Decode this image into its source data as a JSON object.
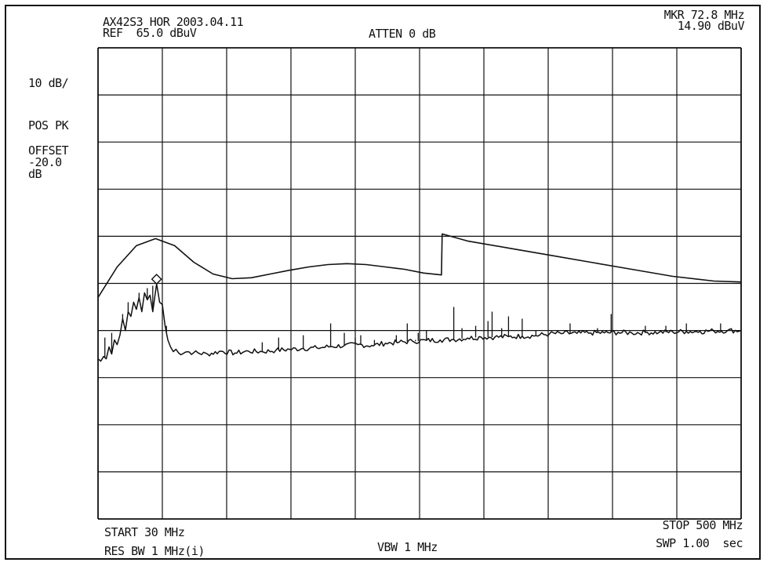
{
  "header": {
    "title": "AX42S3 HOR 2003.04.11",
    "ref_level": "REF  65.0 dBuV",
    "attenuation": "ATTEN 0 dB",
    "marker_freq": "MKR 72.8 MHz",
    "marker_level": "14.90 dBuV"
  },
  "side_panel": {
    "scale": "10 dB/",
    "detector": "POS PK",
    "offset_label": "OFFSET",
    "offset_value": "-20.0",
    "offset_unit": "dB"
  },
  "footer": {
    "start": "START 30 MHz",
    "res_bw": "RES BW 1 MHz(i)",
    "vbw": "VBW 1 MHz",
    "stop": "STOP 500 MHz",
    "sweep": "SWP 1.00  sec"
  },
  "colors": {
    "trace": "#111111",
    "grid": "#111111",
    "background": "#ffffff"
  },
  "chart_data": {
    "type": "line",
    "xlim": [
      30,
      500
    ],
    "ylim": [
      -35,
      65
    ],
    "grid": true,
    "grid_divisions": {
      "x": 10,
      "y": 10
    },
    "marker": {
      "x": 72.8,
      "y": 14.9,
      "shape": "diamond"
    },
    "series": [
      {
        "role": "limit",
        "x": [
          30,
          44,
          58,
          72,
          86,
          100,
          114,
          128,
          142,
          156,
          170,
          184,
          198,
          212,
          226,
          240,
          254,
          268,
          281,
          281.5,
          300,
          330,
          360,
          390,
          420,
          450,
          480,
          500
        ],
        "y": [
          12.0,
          18.5,
          23.0,
          24.5,
          23.0,
          19.5,
          17.0,
          16.0,
          16.2,
          17.0,
          17.8,
          18.5,
          19.0,
          19.2,
          19.0,
          18.5,
          18.0,
          17.2,
          16.8,
          25.5,
          24.0,
          22.5,
          21.0,
          19.5,
          18.0,
          16.5,
          15.5,
          15.3
        ]
      },
      {
        "role": "measured",
        "x": [
          30,
          32,
          34,
          36,
          38,
          40,
          42,
          44,
          46,
          48,
          50,
          52,
          54,
          56,
          58,
          60,
          62,
          64,
          66,
          68,
          70,
          72.8,
          75,
          77,
          79,
          81,
          83,
          85,
          87,
          89,
          95,
          100,
          110,
          120,
          130,
          140,
          150,
          160,
          170,
          180,
          190,
          200,
          210,
          220,
          230,
          240,
          250,
          260,
          270,
          280,
          290,
          300,
          310,
          320,
          330,
          340,
          350,
          360,
          370,
          380,
          390,
          400,
          410,
          420,
          430,
          440,
          450,
          460,
          470,
          480,
          490,
          500
        ],
        "y": [
          -1.0,
          -1.5,
          -0.5,
          -1.0,
          1.5,
          0.0,
          3.0,
          2.0,
          4.0,
          7.5,
          5.0,
          9.0,
          8.0,
          11.0,
          9.5,
          12.0,
          9.0,
          13.0,
          11.5,
          12.5,
          9.0,
          14.9,
          11.0,
          10.5,
          6.0,
          3.0,
          1.5,
          0.5,
          1.0,
          0.2,
          0.5,
          0.3,
          0.0,
          0.6,
          0.2,
          0.6,
          0.5,
          0.8,
          1.0,
          1.2,
          1.3,
          1.6,
          1.8,
          2.0,
          1.8,
          2.3,
          2.5,
          2.7,
          2.9,
          3.0,
          3.1,
          3.4,
          3.6,
          3.6,
          3.7,
          3.8,
          3.9,
          4.3,
          4.4,
          4.4,
          4.5,
          4.5,
          4.6,
          4.5,
          4.6,
          4.6,
          4.7,
          4.8,
          4.8,
          4.9,
          5.0,
          5.0
        ]
      },
      {
        "role": "spikes",
        "x": [
          35,
          40,
          48,
          52,
          60,
          66,
          70,
          80,
          150,
          162,
          180,
          200,
          210,
          218,
          222,
          232,
          248,
          256,
          262,
          264,
          270,
          290,
          296,
          306,
          315,
          318,
          325,
          330,
          340,
          350,
          375,
          395,
          405,
          430,
          445,
          460,
          485
        ],
        "y": [
          3.5,
          4.5,
          8.5,
          11.0,
          13.0,
          14.0,
          14.5,
          6.0,
          2.5,
          3.5,
          4.0,
          6.5,
          4.5,
          3.5,
          4.0,
          3.0,
          4.0,
          6.5,
          3.0,
          4.5,
          5.0,
          10.0,
          5.5,
          6.0,
          7.0,
          9.0,
          5.5,
          8.0,
          7.5,
          5.0,
          6.5,
          5.5,
          8.5,
          6.0,
          6.0,
          6.5,
          6.5
        ]
      }
    ]
  }
}
